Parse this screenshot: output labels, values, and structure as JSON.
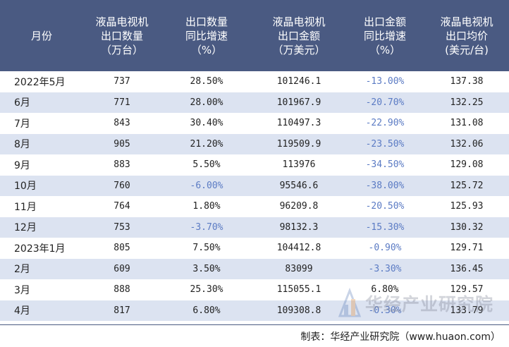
{
  "colors": {
    "header_bg": "#4a5a82",
    "header_text": "#ffffff",
    "row_stripe": "#dce3f1",
    "negative_text": "#5b7bc4",
    "text": "#222222"
  },
  "header": {
    "month": "月份",
    "volume": [
      "液晶电视机",
      "出口数量",
      "（万台）"
    ],
    "volume_yoy": [
      "出口数量",
      "同比增速",
      "（%）"
    ],
    "value": [
      "液晶电视机",
      "出口金额",
      "（万美元）"
    ],
    "value_yoy": [
      "出口金额",
      "同比增速",
      "（%）"
    ],
    "avg_price": [
      "液晶电视机",
      "出口均价",
      "(美元/台)"
    ]
  },
  "rows": [
    {
      "month": "2022年5月",
      "volume": "737",
      "volume_yoy": "28.50%",
      "value": "101246.1",
      "value_yoy": "-13.00%",
      "avg_price": "137.38"
    },
    {
      "month": "6月",
      "volume": "771",
      "volume_yoy": "28.00%",
      "value": "101967.9",
      "value_yoy": "-20.70%",
      "avg_price": "132.25"
    },
    {
      "month": "7月",
      "volume": "843",
      "volume_yoy": "30.40%",
      "value": "110497.3",
      "value_yoy": "-22.90%",
      "avg_price": "131.08"
    },
    {
      "month": "8月",
      "volume": "905",
      "volume_yoy": "21.20%",
      "value": "119509.9",
      "value_yoy": "-23.50%",
      "avg_price": "132.06"
    },
    {
      "month": "9月",
      "volume": "883",
      "volume_yoy": "5.50%",
      "value": "113976",
      "value_yoy": "-34.50%",
      "avg_price": "129.08"
    },
    {
      "month": "10月",
      "volume": "760",
      "volume_yoy": "-6.00%",
      "value": "95546.6",
      "value_yoy": "-38.00%",
      "avg_price": "125.72"
    },
    {
      "month": "11月",
      "volume": "764",
      "volume_yoy": "1.80%",
      "value": "96209.8",
      "value_yoy": "-20.50%",
      "avg_price": "125.93"
    },
    {
      "month": "12月",
      "volume": "753",
      "volume_yoy": "-3.70%",
      "value": "98132.3",
      "value_yoy": "-15.30%",
      "avg_price": "130.32"
    },
    {
      "month": "2023年1月",
      "volume": "805",
      "volume_yoy": "7.50%",
      "value": "104412.8",
      "value_yoy": "-0.90%",
      "avg_price": "129.71"
    },
    {
      "month": "2月",
      "volume": "609",
      "volume_yoy": "3.50%",
      "value": "83099",
      "value_yoy": "-3.30%",
      "avg_price": "136.45"
    },
    {
      "month": "3月",
      "volume": "888",
      "volume_yoy": "25.30%",
      "value": "115055.1",
      "value_yoy": "6.80%",
      "avg_price": "129.57"
    },
    {
      "month": "4月",
      "volume": "817",
      "volume_yoy": "6.80%",
      "value": "109308.8",
      "value_yoy": "-0.30%",
      "avg_price": "133.79"
    }
  ],
  "footer": {
    "source": "制表：华经产业研究院（www.huaon.com）"
  },
  "watermark": {
    "text": "华经产业研究院",
    "icon": "huajing-logo-icon"
  }
}
